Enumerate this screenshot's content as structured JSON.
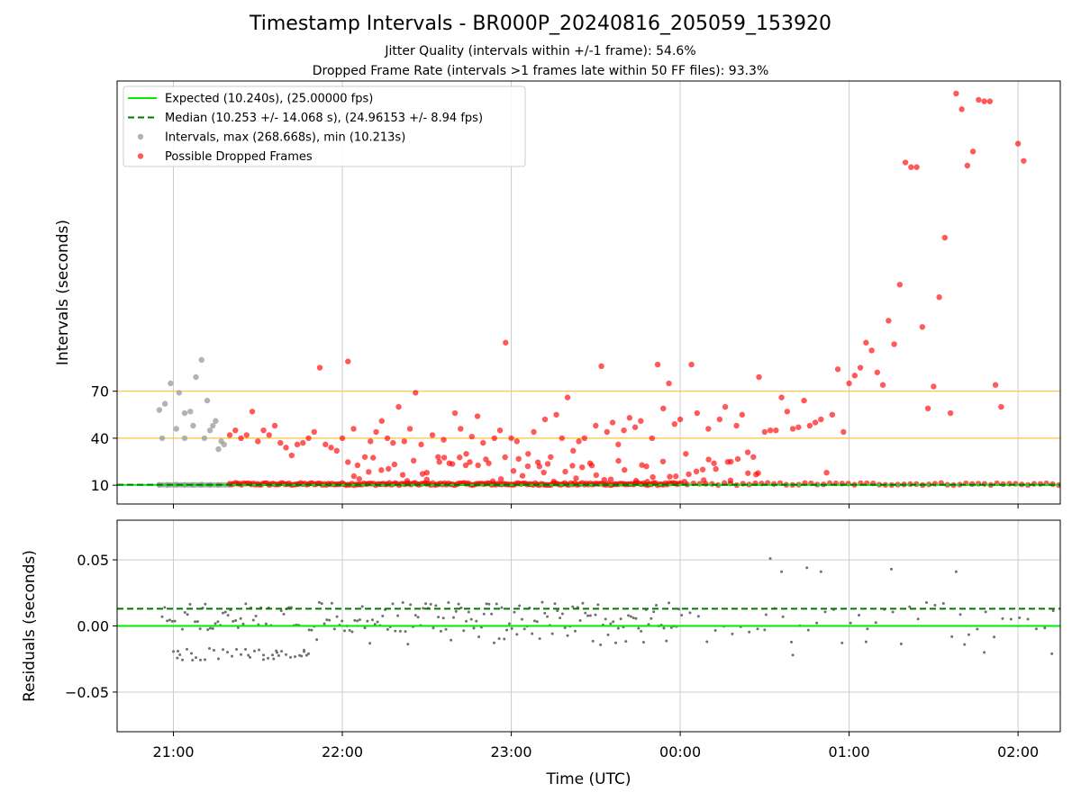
{
  "header": {
    "title": "Timestamp Intervals - BR000P_20240816_205059_153920",
    "subtitle_1": "Jitter Quality (intervals within +/-1 frame): 54.6%",
    "subtitle_2": "Dropped Frame Rate (intervals >1 frames late within 50 FF files): 93.3%"
  },
  "colors": {
    "expected": "#00ee00",
    "median": "#007700",
    "interval_points": "#999999",
    "dropped_points": "#ff0000",
    "threshold_lines": "#ffc040",
    "residual_points": "#707070",
    "grid": "#cccccc"
  },
  "chart_data": [
    {
      "type": "scatter",
      "panel": "intervals",
      "ylabel": "Intervals (seconds)",
      "yticks": [
        10,
        40,
        70
      ],
      "ylim": [
        -2,
        268
      ],
      "xlim": [
        "20:40",
        "02:15"
      ],
      "grid": "x",
      "legend_position": "top-left",
      "threshold_lines": [
        40,
        70
      ],
      "legend": [
        {
          "label": "Expected (10.240s), (25.00000 fps)",
          "kind": "solid-line"
        },
        {
          "label": "Median (10.253 +/- 14.068 s), (24.96153 +/- 8.94 fps)",
          "kind": "dashed-line"
        },
        {
          "label": "Intervals, max (268.668s), min (10.213s)",
          "kind": "gray-dot"
        },
        {
          "label": "Possible Dropped Frames",
          "kind": "red-dot"
        }
      ],
      "series": [
        {
          "name": "Expected (10.240s), (25.00000 fps)",
          "line_y": 10.24
        },
        {
          "name": "Median (10.253 +/- 14.068 s), (24.96153 +/- 8.94 fps)",
          "line_y": 10.253
        },
        {
          "name": "Intervals, max (268.668s), min (10.213s)",
          "points": [
            [
              "20:55",
              58
            ],
            [
              "20:57",
              62
            ],
            [
              "20:59",
              75
            ],
            [
              "21:02",
              69
            ],
            [
              "21:04",
              56
            ],
            [
              "21:06",
              57
            ],
            [
              "21:08",
              79
            ],
            [
              "21:10",
              90
            ],
            [
              "21:12",
              64
            ],
            [
              "21:14",
              48
            ],
            [
              "20:56",
              40
            ],
            [
              "21:01",
              46
            ],
            [
              "21:04",
              40
            ],
            [
              "21:07",
              48
            ],
            [
              "21:11",
              40
            ],
            [
              "21:13",
              45
            ],
            [
              "21:15",
              51
            ],
            [
              "21:16",
              33
            ],
            [
              "21:17",
              38
            ],
            [
              "21:18",
              36
            ],
            [
              "20:55",
              10.2
            ],
            [
              "20:58",
              10.2
            ],
            [
              "21:01",
              10.3
            ],
            [
              "21:04",
              10.2
            ],
            [
              "21:07",
              10.2
            ],
            [
              "21:10",
              10.3
            ],
            [
              "21:13",
              10.2
            ],
            [
              "21:16",
              10.2
            ]
          ]
        },
        {
          "name": "Possible Dropped Frames",
          "points": [
            [
              "21:20",
              42
            ],
            [
              "21:22",
              45
            ],
            [
              "21:24",
              40
            ],
            [
              "21:26",
              42
            ],
            [
              "21:28",
              57
            ],
            [
              "21:30",
              38
            ],
            [
              "21:32",
              45
            ],
            [
              "21:34",
              42
            ],
            [
              "21:36",
              48
            ],
            [
              "21:38",
              37
            ],
            [
              "21:40",
              34
            ],
            [
              "21:42",
              29
            ],
            [
              "21:44",
              36
            ],
            [
              "21:46",
              37
            ],
            [
              "21:48",
              40
            ],
            [
              "21:50",
              44
            ],
            [
              "21:52",
              85
            ],
            [
              "21:54",
              36
            ],
            [
              "21:56",
              34
            ],
            [
              "21:58",
              32
            ],
            [
              "22:00",
              40
            ],
            [
              "22:02",
              89
            ],
            [
              "22:04",
              46
            ],
            [
              "22:06",
              14
            ],
            [
              "22:08",
              28
            ],
            [
              "22:10",
              38
            ],
            [
              "22:12",
              44
            ],
            [
              "22:14",
              51
            ],
            [
              "22:16",
              40
            ],
            [
              "22:18",
              37
            ],
            [
              "22:20",
              60
            ],
            [
              "22:22",
              38
            ],
            [
              "22:24",
              46
            ],
            [
              "22:26",
              69
            ],
            [
              "22:28",
              36
            ],
            [
              "22:30",
              18
            ],
            [
              "22:32",
              42
            ],
            [
              "22:34",
              28
            ],
            [
              "22:36",
              39
            ],
            [
              "22:38",
              24
            ],
            [
              "22:40",
              56
            ],
            [
              "22:42",
              46
            ],
            [
              "22:44",
              30
            ],
            [
              "22:46",
              41
            ],
            [
              "22:48",
              54
            ],
            [
              "22:50",
              37
            ],
            [
              "22:52",
              24
            ],
            [
              "22:54",
              40
            ],
            [
              "22:56",
              45
            ],
            [
              "22:58",
              101
            ],
            [
              "23:00",
              40
            ],
            [
              "23:02",
              38
            ],
            [
              "23:04",
              16
            ],
            [
              "23:06",
              30
            ],
            [
              "23:08",
              44
            ],
            [
              "23:10",
              22
            ],
            [
              "23:12",
              52
            ],
            [
              "23:14",
              28
            ],
            [
              "23:16",
              55
            ],
            [
              "23:18",
              40
            ],
            [
              "23:20",
              66
            ],
            [
              "23:22",
              32
            ],
            [
              "23:24",
              38
            ],
            [
              "23:26",
              40
            ],
            [
              "23:28",
              24
            ],
            [
              "23:30",
              48
            ],
            [
              "23:32",
              86
            ],
            [
              "23:34",
              44
            ],
            [
              "23:36",
              50
            ],
            [
              "23:38",
              36
            ],
            [
              "23:40",
              45
            ],
            [
              "23:42",
              53
            ],
            [
              "23:44",
              47
            ],
            [
              "23:46",
              51
            ],
            [
              "23:48",
              22
            ],
            [
              "23:50",
              40
            ],
            [
              "23:52",
              87
            ],
            [
              "23:54",
              59
            ],
            [
              "23:56",
              75
            ],
            [
              "23:58",
              49
            ],
            [
              "00:00",
              52
            ],
            [
              "00:02",
              30
            ],
            [
              "00:04",
              87
            ],
            [
              "00:06",
              56
            ],
            [
              "00:08",
              20
            ],
            [
              "00:10",
              46
            ],
            [
              "00:12",
              24
            ],
            [
              "00:14",
              52
            ],
            [
              "00:16",
              60
            ],
            [
              "00:18",
              25
            ],
            [
              "00:20",
              48
            ],
            [
              "00:22",
              55
            ],
            [
              "00:24",
              31
            ],
            [
              "00:26",
              28
            ],
            [
              "00:28",
              79
            ],
            [
              "00:30",
              44
            ],
            [
              "00:32",
              45
            ],
            [
              "00:34",
              45
            ],
            [
              "00:36",
              66
            ],
            [
              "00:38",
              57
            ],
            [
              "00:40",
              46
            ],
            [
              "00:42",
              47
            ],
            [
              "00:44",
              64
            ],
            [
              "00:46",
              48
            ],
            [
              "00:48",
              50
            ],
            [
              "00:50",
              52
            ],
            [
              "00:52",
              18
            ],
            [
              "00:54",
              55
            ],
            [
              "00:56",
              84
            ],
            [
              "00:58",
              44
            ],
            [
              "01:00",
              75
            ],
            [
              "01:02",
              80
            ],
            [
              "01:04",
              85
            ],
            [
              "01:06",
              101
            ],
            [
              "01:08",
              96
            ],
            [
              "01:10",
              82
            ],
            [
              "01:12",
              74
            ],
            [
              "01:14",
              115
            ],
            [
              "01:16",
              100
            ],
            [
              "01:18",
              138
            ],
            [
              "01:20",
              216
            ],
            [
              "01:22",
              213
            ],
            [
              "01:24",
              213
            ],
            [
              "01:26",
              111
            ],
            [
              "01:28",
              59
            ],
            [
              "01:30",
              73
            ],
            [
              "01:32",
              130
            ],
            [
              "01:34",
              168
            ],
            [
              "01:36",
              56
            ],
            [
              "01:38",
              260
            ],
            [
              "01:40",
              250
            ],
            [
              "01:42",
              214
            ],
            [
              "01:44",
              223
            ],
            [
              "01:46",
              256
            ],
            [
              "01:48",
              255
            ],
            [
              "01:50",
              255
            ],
            [
              "01:52",
              74
            ],
            [
              "01:54",
              60
            ],
            [
              "02:00",
              228
            ],
            [
              "02:02",
              217
            ]
          ]
        }
      ]
    },
    {
      "type": "scatter",
      "panel": "residuals",
      "ylabel": "Residuals (seconds)",
      "xlabel": "Time (UTC)",
      "xticks": [
        "21:00",
        "22:00",
        "23:00",
        "00:00",
        "01:00",
        "02:00"
      ],
      "yticks": [
        0.05,
        0.0,
        -0.05
      ],
      "ytick_labels": [
        "0.05",
        "0.00",
        "−0.05"
      ],
      "ylim": [
        -0.08,
        0.08
      ],
      "xlim": [
        "20:40",
        "02:15"
      ],
      "grid": "both",
      "expected_line": 0.0,
      "median_line": 0.013,
      "upper_band": [
        0.005,
        0.018
      ],
      "lower_band": [
        -0.026,
        -0.017
      ],
      "outliers": [
        [
          "00:32",
          0.051
        ],
        [
          "00:36",
          0.041
        ],
        [
          "00:45",
          0.044
        ],
        [
          "00:50",
          0.041
        ],
        [
          "01:15",
          0.043
        ],
        [
          "01:38",
          0.041
        ],
        [
          "00:30",
          -0.003
        ],
        [
          "00:40",
          -0.022
        ],
        [
          "01:06",
          -0.012
        ],
        [
          "01:41",
          -0.014
        ],
        [
          "01:48",
          -0.02
        ],
        [
          "02:12",
          -0.021
        ]
      ]
    }
  ]
}
